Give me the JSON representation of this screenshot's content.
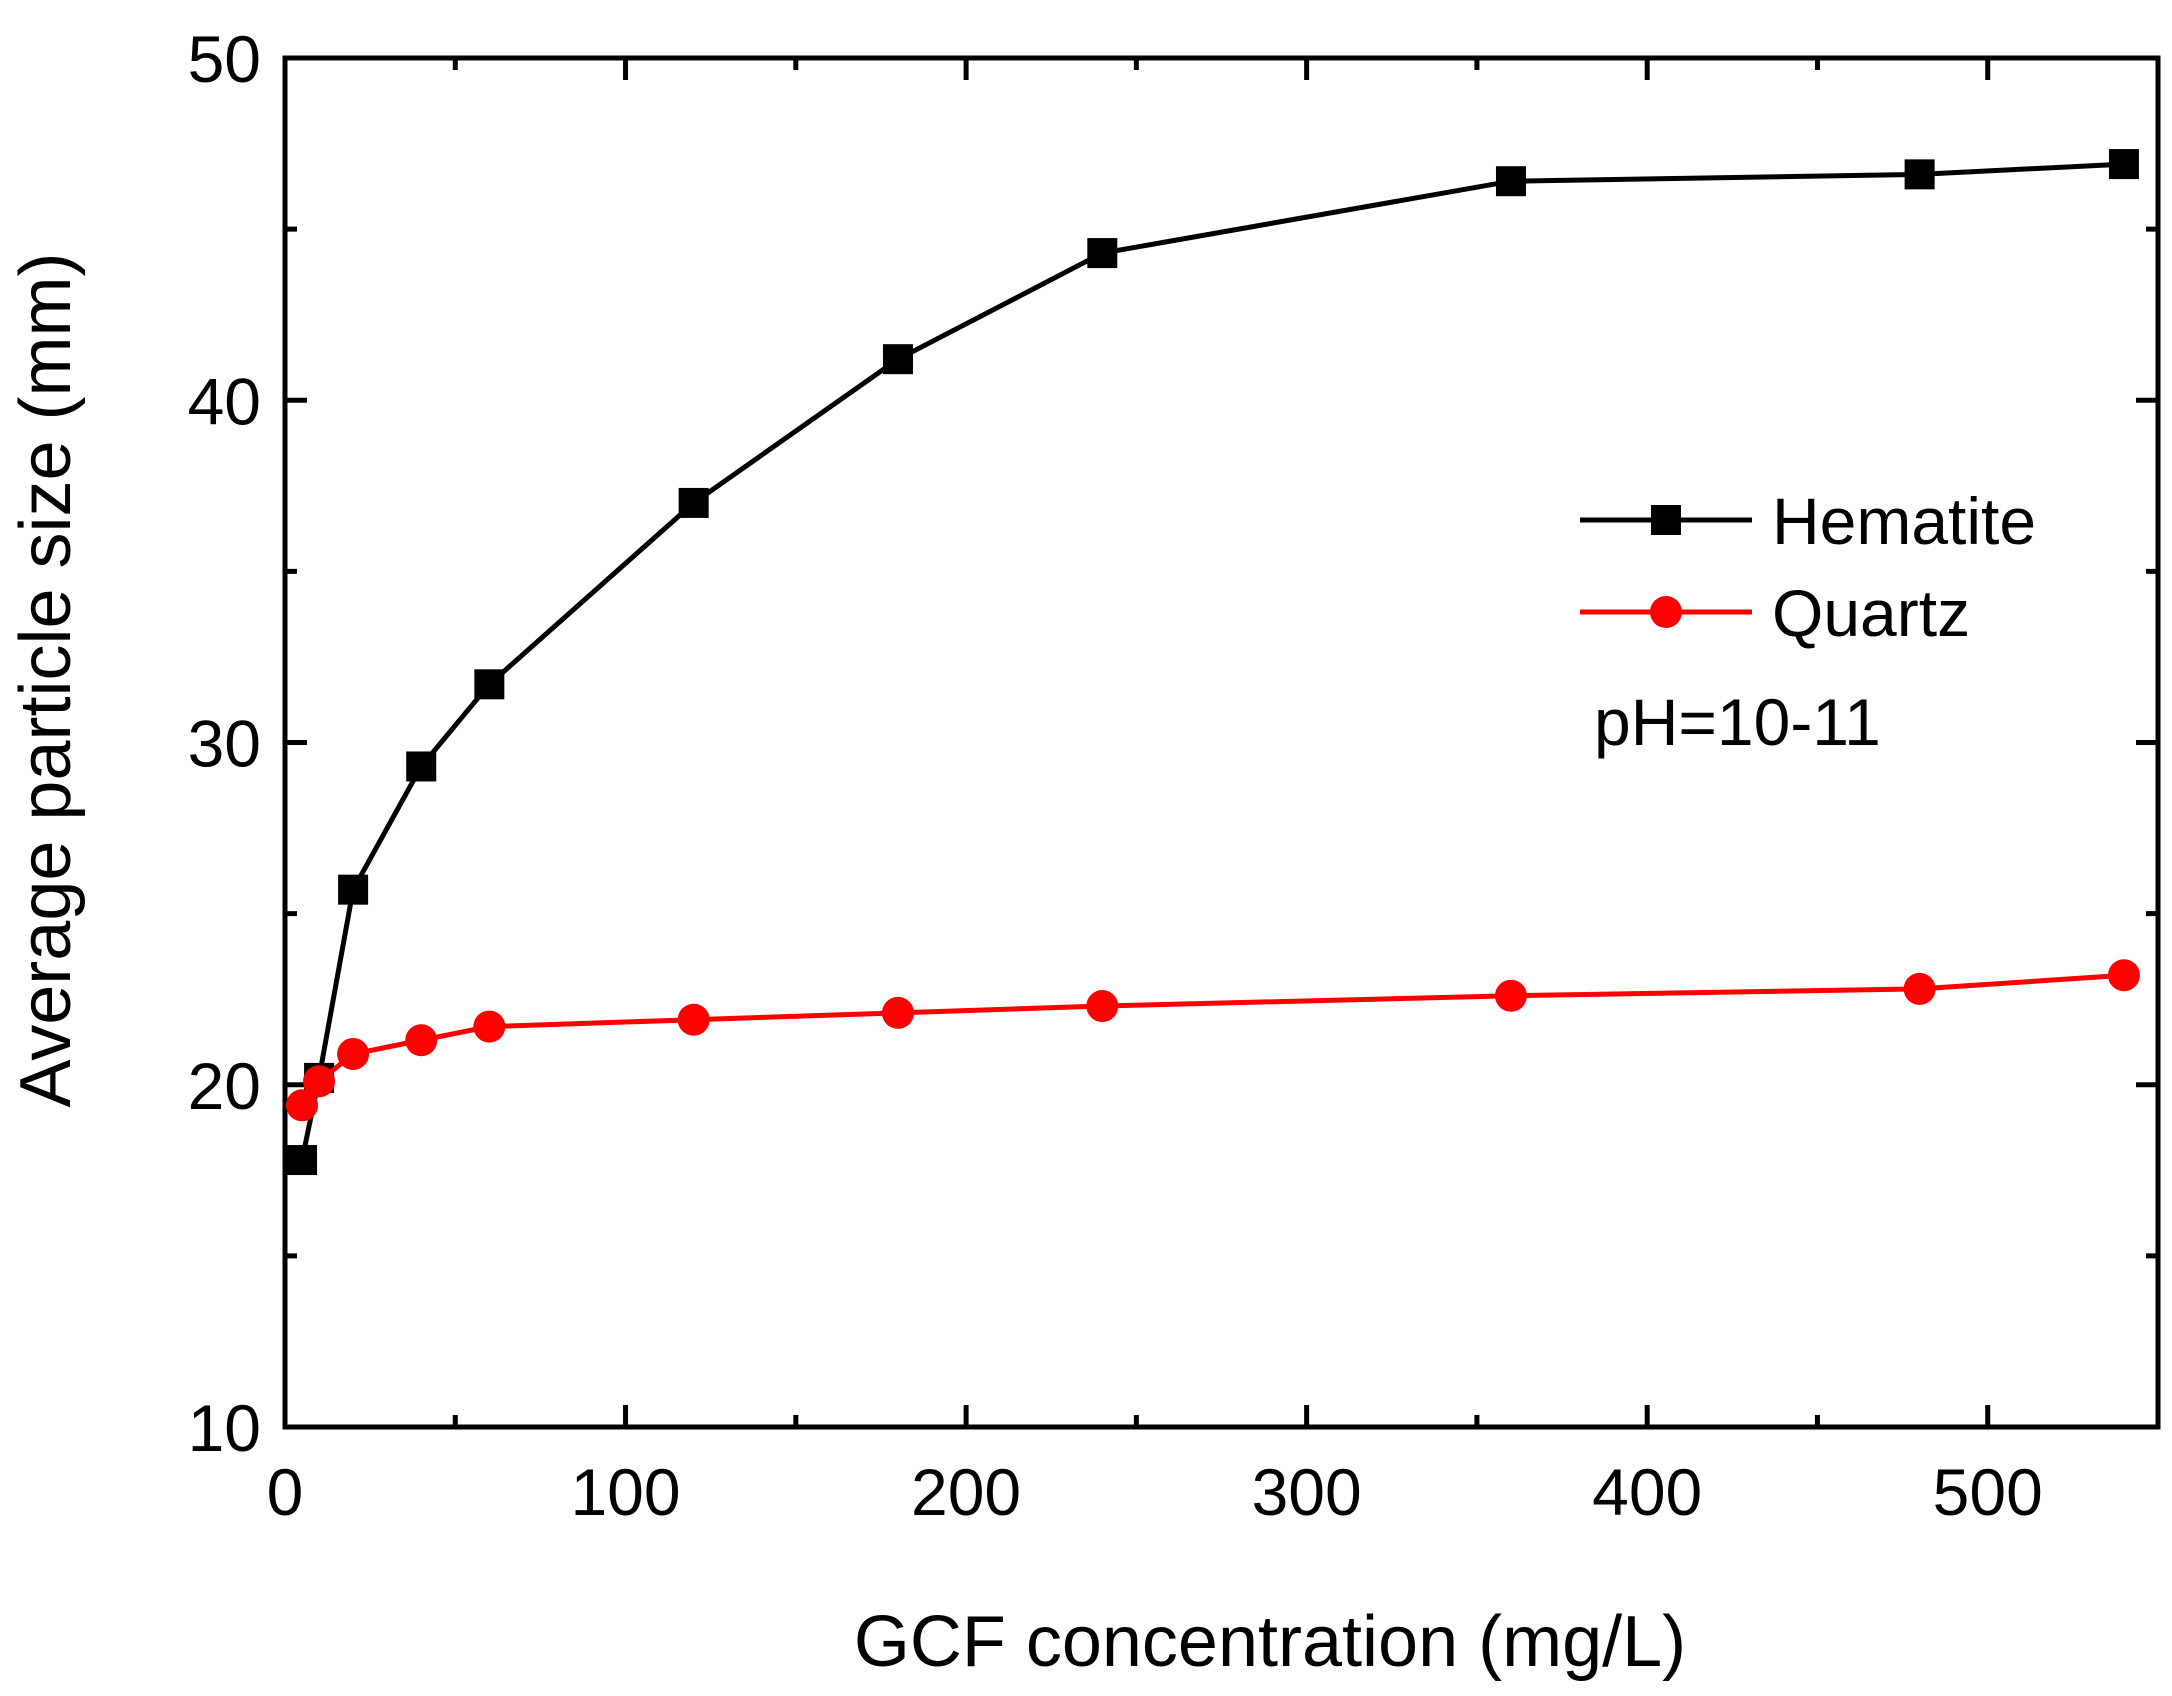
{
  "chart_data": {
    "type": "line",
    "title": "",
    "xlabel": "GCF concentration (mg/L)",
    "ylabel": "Average particle size (mm)",
    "xlim": [
      0,
      550
    ],
    "ylim": [
      10,
      50
    ],
    "x_ticks": [
      0,
      100,
      200,
      300,
      400,
      500
    ],
    "y_ticks": [
      10,
      20,
      30,
      40,
      50
    ],
    "x_minor_ticks": [
      50,
      150,
      250,
      350,
      450
    ],
    "y_minor_ticks": [
      15,
      25,
      35,
      45
    ],
    "grid": false,
    "legend_position": "right",
    "annotation": "pH=10-11",
    "series": [
      {
        "name": "Hematite",
        "marker": "square",
        "color": "#000000",
        "x": [
          5,
          10,
          20,
          40,
          60,
          120,
          180,
          240,
          360,
          480,
          540
        ],
        "y": [
          17.8,
          20.2,
          25.7,
          29.3,
          31.7,
          37.0,
          41.2,
          44.3,
          46.4,
          46.6,
          46.9
        ]
      },
      {
        "name": "Quartz",
        "marker": "circle",
        "color": "#ff0000",
        "x": [
          5,
          10,
          20,
          40,
          60,
          120,
          180,
          240,
          360,
          480,
          540
        ],
        "y": [
          19.4,
          20.1,
          20.9,
          21.3,
          21.7,
          21.9,
          22.1,
          22.3,
          22.6,
          22.8,
          23.2
        ]
      }
    ]
  }
}
